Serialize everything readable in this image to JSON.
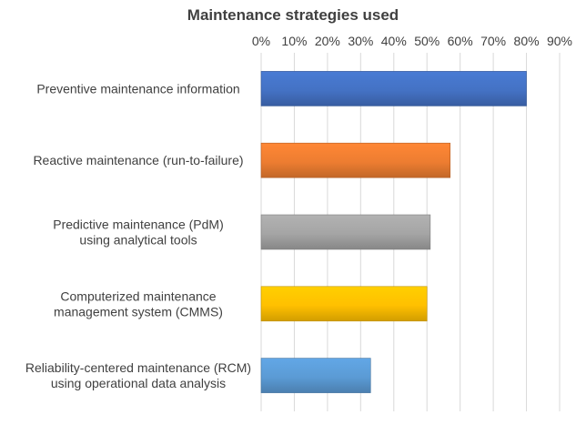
{
  "chart_data": {
    "type": "bar",
    "orientation": "horizontal",
    "title": "Maintenance strategies used",
    "xlabel": "",
    "ylabel": "",
    "xlim": [
      0,
      90
    ],
    "x_ticks": [
      "0%",
      "10%",
      "20%",
      "30%",
      "40%",
      "50%",
      "60%",
      "70%",
      "80%",
      "90%"
    ],
    "x_axis_position": "top",
    "grid": true,
    "legend": "none",
    "categories": [
      [
        "Preventive maintenance information"
      ],
      [
        "Reactive maintenance (run-to-failure)"
      ],
      [
        "Predictive maintenance (PdM)",
        "using analytical tools"
      ],
      [
        "Computerized maintenance",
        "management system (CMMS)"
      ],
      [
        "Reliability-centered maintenance (RCM)",
        "using operational data analysis"
      ]
    ],
    "values": [
      80,
      57,
      51,
      50,
      33
    ],
    "colors": [
      "#4472c4",
      "#ed7d31",
      "#a5a5a5",
      "#ffc000",
      "#5b9bd5"
    ]
  }
}
